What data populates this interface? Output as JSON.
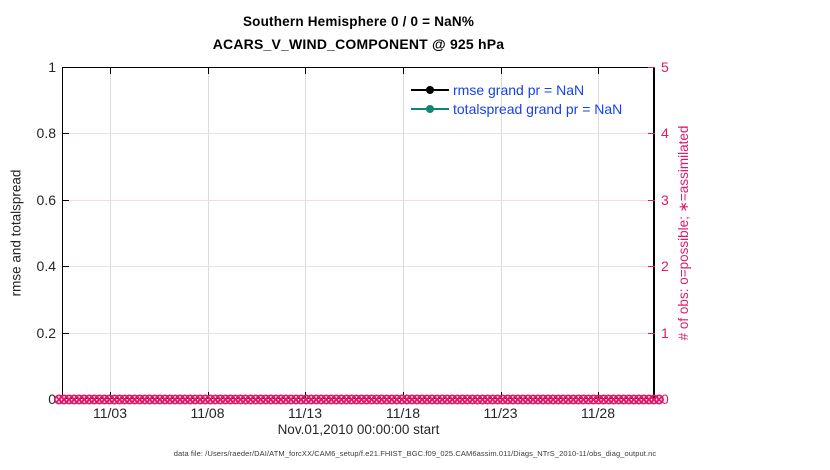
{
  "title": {
    "line1": "Southern Hemisphere 0 / 0 = NaN%",
    "line2": "ACARS_V_WIND_COMPONENT @ 925 hPa"
  },
  "legend": {
    "entries": [
      {
        "label": "rmse grand pr = NaN",
        "line_color": "#000000",
        "marker": "filled-circle"
      },
      {
        "label": "totalspread grand pr = NaN",
        "line_color": "#108577",
        "marker": "filled-circle"
      }
    ],
    "text_color": "#1641F0"
  },
  "left_axis": {
    "label": "rmse and totalspread",
    "ticks": [
      "0",
      "0.2",
      "0.4",
      "0.6",
      "0.8",
      "1"
    ]
  },
  "right_axis": {
    "label": "# of obs: o=possible; ∗=assimilated",
    "ticks": [
      "0",
      "1",
      "2",
      "3",
      "4",
      "5"
    ]
  },
  "x_axis": {
    "ticks": [
      "11/03",
      "11/08",
      "11/13",
      "11/18",
      "11/23",
      "11/28"
    ],
    "label": "Nov.01,2010 00:00:00 start"
  },
  "footer": "data file: /Users/raeder/DAI/ATM_forcXX/CAM6_setup/f.e21.FHIST_BGC.f09_025.CAM6assim.011/Diags_NTrS_2010-11/obs_diag_output.nc",
  "colors": {
    "crimson": "#DE1A6B",
    "teal": "#108577",
    "legend_blue": "#1641F0",
    "grid_pink": "#F7D9E3",
    "grid_gray": "#DBDBDB",
    "black": "#000000"
  },
  "chart_data": {
    "type": "line",
    "title": "Southern Hemisphere 0 / 0 = NaN%",
    "subtitle": "ACARS_V_WIND_COMPONENT @ 925 hPa",
    "xlabel": "Nov.01,2010 00:00:00 start",
    "ylabel_left": "rmse and totalspread",
    "ylabel_right": "# of obs: o=possible; ∗=assimilated",
    "x_tick_labels": [
      "11/03",
      "11/08",
      "11/13",
      "11/18",
      "11/23",
      "11/28"
    ],
    "x_range": [
      "2010-11-01",
      "2010-11-30"
    ],
    "ylim_left": [
      0,
      1
    ],
    "ylim_right": [
      0,
      5
    ],
    "grid": true,
    "legend_position": "inside-top-right",
    "series": [
      {
        "name": "rmse grand pr = NaN",
        "axis": "left",
        "color": "#000000",
        "values_summary": "all NaN, no visible curve"
      },
      {
        "name": "totalspread grand pr = NaN",
        "axis": "left",
        "color": "#108577",
        "values_summary": "all NaN, no visible curve"
      },
      {
        "name": "# of obs possible (o markers)",
        "axis": "right",
        "color": "#DE1A6B",
        "n_points": 120,
        "value_at_all_times": 0
      },
      {
        "name": "# of obs assimilated (x markers)",
        "axis": "right",
        "color": "#DE1A6B",
        "n_points": 120,
        "value_at_all_times": 0
      }
    ],
    "obs_band": {
      "n_points": 120
    }
  },
  "layout_counts": {
    "note": ""
  }
}
